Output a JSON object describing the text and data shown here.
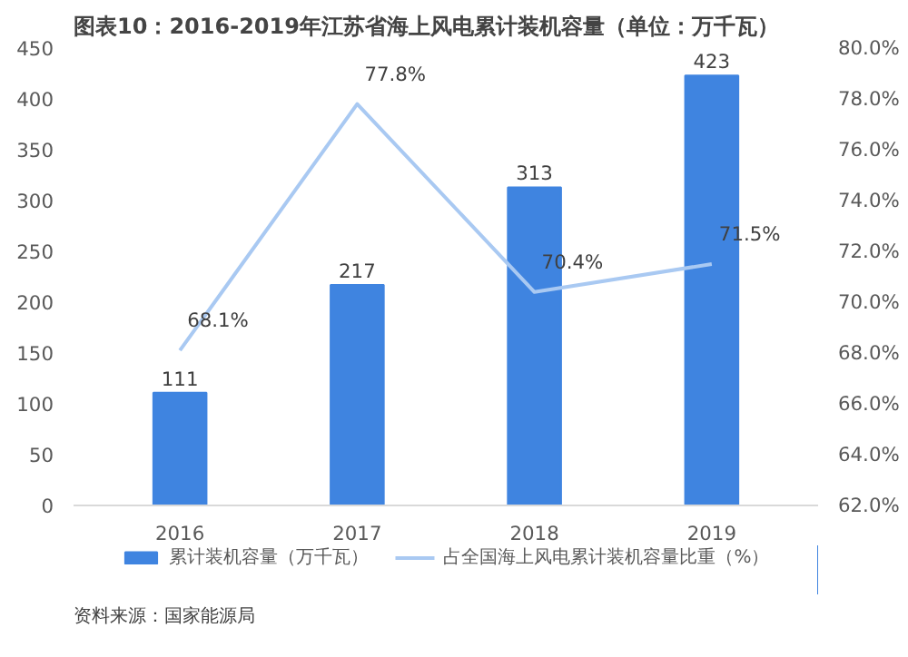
{
  "chart_data": {
    "type": "bar",
    "title": "图表10：2016-2019年江苏省海上风电累计装机容量（单位：万千瓦）",
    "categories": [
      "2016",
      "2017",
      "2018",
      "2019"
    ],
    "series": [
      {
        "name": "累计装机容量（万千瓦）",
        "type": "bar",
        "color": "#3f84e0",
        "values": [
          111,
          217,
          313,
          423
        ],
        "value_labels": [
          "111",
          "217",
          "313",
          "423"
        ]
      },
      {
        "name": "占全国海上风电累计装机容量比重（%）",
        "type": "line",
        "axis": "y2",
        "color": "#a9c9f2",
        "values": [
          68.1,
          77.8,
          70.4,
          71.5
        ],
        "value_labels": [
          "68.1%",
          "77.8%",
          "70.4%",
          "71.5%"
        ]
      }
    ],
    "ylim": [
      0,
      450
    ],
    "yticks": [
      0,
      50,
      100,
      150,
      200,
      250,
      300,
      350,
      400,
      450
    ],
    "y2lim": [
      62,
      80
    ],
    "y2ticks": [
      {
        "value": 62,
        "label": "62.0%"
      },
      {
        "value": 64,
        "label": "64.0%"
      },
      {
        "value": 66,
        "label": "66.0%"
      },
      {
        "value": 68,
        "label": "68.0%"
      },
      {
        "value": 70,
        "label": "70.0%"
      },
      {
        "value": 72,
        "label": "72.0%"
      },
      {
        "value": 74,
        "label": "74.0%"
      },
      {
        "value": 76,
        "label": "76.0%"
      },
      {
        "value": 78,
        "label": "78.0%"
      },
      {
        "value": 80,
        "label": "80.0%"
      }
    ],
    "legend": "bottom",
    "annotations": [
      "资料来源：国家能源局"
    ]
  }
}
